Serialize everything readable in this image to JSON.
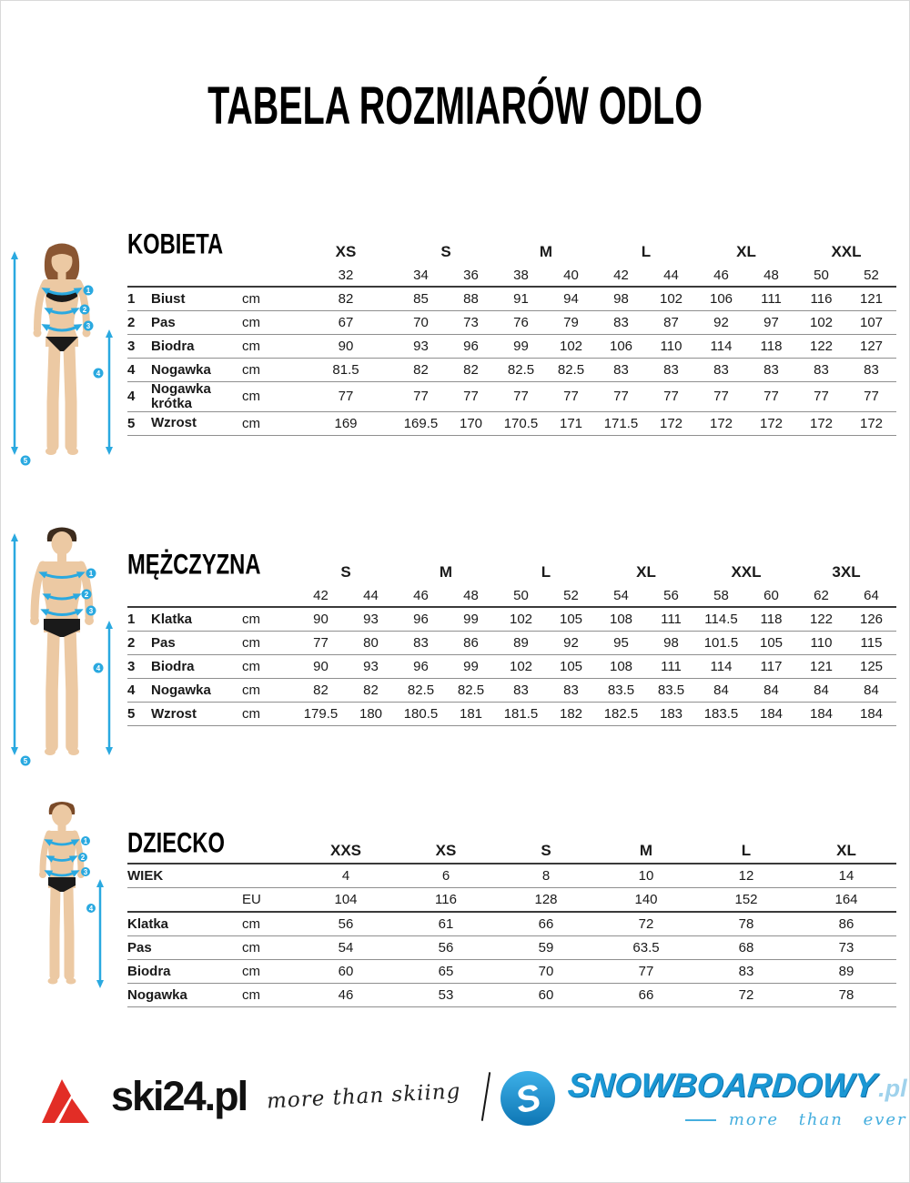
{
  "title": "TABELA ROZMIARÓW ODLO",
  "tables": [
    {
      "id": "kobieta",
      "section_label": "KOBIETA",
      "has_num": true,
      "sizes": [
        "XS",
        "S",
        "M",
        "L",
        "XL",
        "XXL"
      ],
      "subsizes": [
        [
          "32"
        ],
        [
          "34",
          "36"
        ],
        [
          "38",
          "40"
        ],
        [
          "42",
          "44"
        ],
        [
          "46",
          "48"
        ],
        [
          "50",
          "52"
        ]
      ],
      "rows": [
        {
          "num": "1",
          "label": "Biust",
          "unit": "cm",
          "values": [
            [
              "82"
            ],
            [
              "85",
              "88"
            ],
            [
              "91",
              "94"
            ],
            [
              "98",
              "102"
            ],
            [
              "106",
              "111"
            ],
            [
              "116",
              "121"
            ]
          ]
        },
        {
          "num": "2",
          "label": "Pas",
          "unit": "cm",
          "values": [
            [
              "67"
            ],
            [
              "70",
              "73"
            ],
            [
              "76",
              "79"
            ],
            [
              "83",
              "87"
            ],
            [
              "92",
              "97"
            ],
            [
              "102",
              "107"
            ]
          ]
        },
        {
          "num": "3",
          "label": "Biodra",
          "unit": "cm",
          "values": [
            [
              "90"
            ],
            [
              "93",
              "96"
            ],
            [
              "99",
              "102"
            ],
            [
              "106",
              "110"
            ],
            [
              "114",
              "118"
            ],
            [
              "122",
              "127"
            ]
          ]
        },
        {
          "num": "4",
          "label": "Nogawka",
          "unit": "cm",
          "values": [
            [
              "81.5"
            ],
            [
              "82",
              "82"
            ],
            [
              "82.5",
              "82.5"
            ],
            [
              "83",
              "83"
            ],
            [
              "83",
              "83"
            ],
            [
              "83",
              "83"
            ]
          ]
        },
        {
          "num": "4",
          "label": "Nogawka krótka",
          "unit": "cm",
          "values": [
            [
              "77"
            ],
            [
              "77",
              "77"
            ],
            [
              "77",
              "77"
            ],
            [
              "77",
              "77"
            ],
            [
              "77",
              "77"
            ],
            [
              "77",
              "77"
            ]
          ]
        },
        {
          "num": "5",
          "label": "Wzrost",
          "unit": "cm",
          "values": [
            [
              "169"
            ],
            [
              "169.5",
              "170"
            ],
            [
              "170.5",
              "171"
            ],
            [
              "171.5",
              "172"
            ],
            [
              "172",
              "172"
            ],
            [
              "172",
              "172"
            ]
          ]
        }
      ]
    },
    {
      "id": "mezczyzna",
      "section_label": "MĘŻCZYZNA",
      "has_num": true,
      "sizes": [
        "S",
        "M",
        "L",
        "XL",
        "XXL",
        "3XL"
      ],
      "subsizes": [
        [
          "42",
          "44"
        ],
        [
          "46",
          "48"
        ],
        [
          "50",
          "52"
        ],
        [
          "54",
          "56"
        ],
        [
          "58",
          "60"
        ],
        [
          "62",
          "64"
        ]
      ],
      "rows": [
        {
          "num": "1",
          "label": "Klatka",
          "unit": "cm",
          "values": [
            [
              "90",
              "93"
            ],
            [
              "96",
              "99"
            ],
            [
              "102",
              "105"
            ],
            [
              "108",
              "111"
            ],
            [
              "114.5",
              "118"
            ],
            [
              "122",
              "126"
            ]
          ]
        },
        {
          "num": "2",
          "label": "Pas",
          "unit": "cm",
          "values": [
            [
              "77",
              "80"
            ],
            [
              "83",
              "86"
            ],
            [
              "89",
              "92"
            ],
            [
              "95",
              "98"
            ],
            [
              "101.5",
              "105"
            ],
            [
              "110",
              "115"
            ]
          ]
        },
        {
          "num": "3",
          "label": "Biodra",
          "unit": "cm",
          "values": [
            [
              "90",
              "93"
            ],
            [
              "96",
              "99"
            ],
            [
              "102",
              "105"
            ],
            [
              "108",
              "111"
            ],
            [
              "114",
              "117"
            ],
            [
              "121",
              "125"
            ]
          ]
        },
        {
          "num": "4",
          "label": "Nogawka",
          "unit": "cm",
          "values": [
            [
              "82",
              "82"
            ],
            [
              "82.5",
              "82.5"
            ],
            [
              "83",
              "83"
            ],
            [
              "83.5",
              "83.5"
            ],
            [
              "84",
              "84"
            ],
            [
              "84",
              "84"
            ]
          ]
        },
        {
          "num": "5",
          "label": "Wzrost",
          "unit": "cm",
          "values": [
            [
              "179.5",
              "180"
            ],
            [
              "180.5",
              "181"
            ],
            [
              "181.5",
              "182"
            ],
            [
              "182.5",
              "183"
            ],
            [
              "183.5",
              "184"
            ],
            [
              "184",
              "184"
            ]
          ]
        }
      ]
    },
    {
      "id": "dziecko",
      "section_label": "DZIECKO",
      "has_num": false,
      "sizes": [
        "XXS",
        "XS",
        "S",
        "M",
        "L",
        "XL"
      ],
      "subsizes": null,
      "rows": [
        {
          "num": "",
          "label": "WIEK",
          "unit": "",
          "values": [
            [
              "4"
            ],
            [
              "6"
            ],
            [
              "8"
            ],
            [
              "10"
            ],
            [
              "12"
            ],
            [
              "14"
            ]
          ]
        },
        {
          "num": "",
          "label": "",
          "unit": "EU",
          "thick": true,
          "values": [
            [
              "104"
            ],
            [
              "116"
            ],
            [
              "128"
            ],
            [
              "140"
            ],
            [
              "152"
            ],
            [
              "164"
            ]
          ]
        },
        {
          "num": "",
          "label": "Klatka",
          "unit": "cm",
          "values": [
            [
              "56"
            ],
            [
              "61"
            ],
            [
              "66"
            ],
            [
              "72"
            ],
            [
              "78"
            ],
            [
              "86"
            ]
          ]
        },
        {
          "num": "",
          "label": "Pas",
          "unit": "cm",
          "values": [
            [
              "54"
            ],
            [
              "56"
            ],
            [
              "59"
            ],
            [
              "63.5"
            ],
            [
              "68"
            ],
            [
              "73"
            ]
          ]
        },
        {
          "num": "",
          "label": "Biodra",
          "unit": "cm",
          "values": [
            [
              "60"
            ],
            [
              "65"
            ],
            [
              "70"
            ],
            [
              "77"
            ],
            [
              "83"
            ],
            [
              "89"
            ]
          ]
        },
        {
          "num": "",
          "label": "Nogawka",
          "unit": "cm",
          "values": [
            [
              "46"
            ],
            [
              "53"
            ],
            [
              "60"
            ],
            [
              "66"
            ],
            [
              "72"
            ],
            [
              "78"
            ]
          ]
        }
      ]
    }
  ],
  "figures": {
    "woman": {
      "badges": [
        "1",
        "2",
        "3",
        "4",
        "5"
      ]
    },
    "man": {
      "badges": [
        "1",
        "2",
        "3",
        "4",
        "5"
      ]
    },
    "child": {
      "badges": [
        "1",
        "2",
        "3",
        "4"
      ]
    }
  },
  "footer": {
    "ski24": {
      "brand": "ski24.pl",
      "tagline": "more than skiing"
    },
    "snowboardowy": {
      "logo_letter": "S",
      "brand": "SNOWBOARDOWY",
      "tld": ".pl",
      "tagline": "more than ever"
    }
  },
  "colors": {
    "accent_blue": "#2aa9e0",
    "brand_red": "#e22d26",
    "brand_blue": "#1a97d4"
  }
}
